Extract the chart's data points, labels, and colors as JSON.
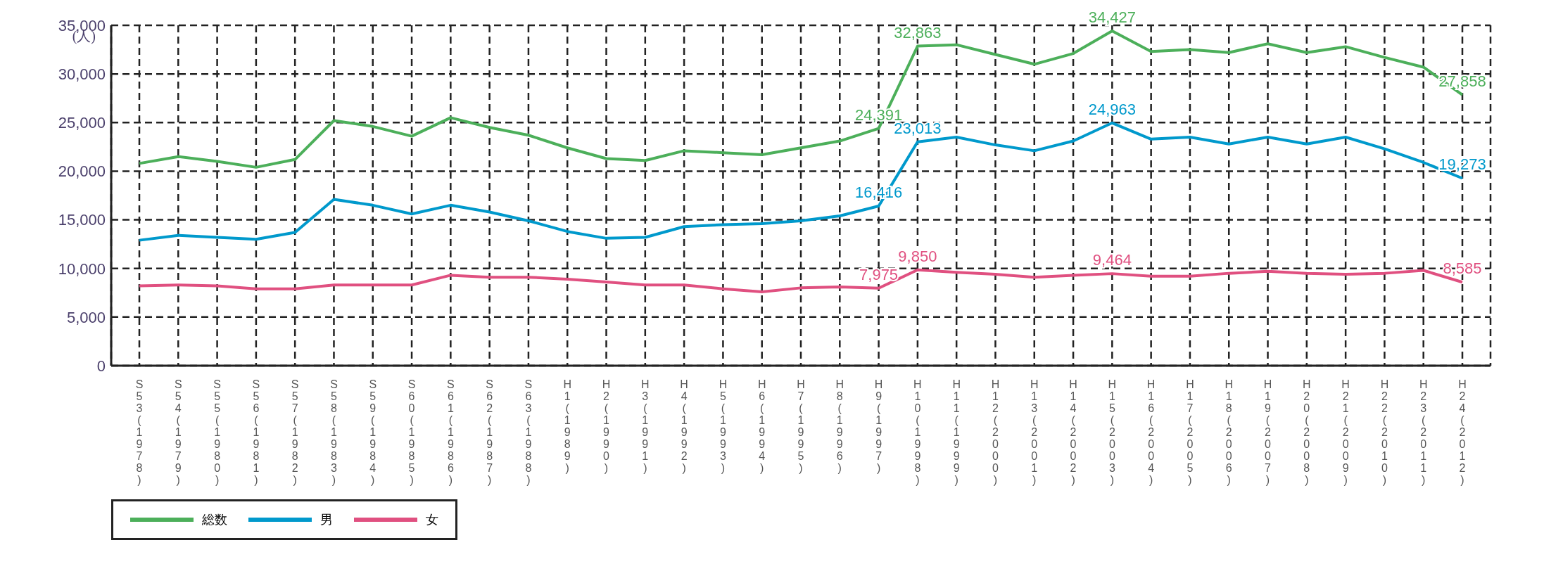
{
  "chart_data": {
    "type": "line",
    "ylabel": "(人)",
    "categories": [
      "S53(1978)",
      "S54(1979)",
      "S55(1980)",
      "S56(1981)",
      "S57(1982)",
      "S58(1983)",
      "S59(1984)",
      "S60(1985)",
      "S61(1986)",
      "S62(1987)",
      "S63(1988)",
      "H1(1989)",
      "H2(1990)",
      "H3(1991)",
      "H4(1992)",
      "H5(1993)",
      "H6(1994)",
      "H7(1995)",
      "H8(1996)",
      "H9(1997)",
      "H10(1998)",
      "H11(1999)",
      "H12(2000)",
      "H13(2001)",
      "H14(2002)",
      "H15(2003)",
      "H16(2004)",
      "H17(2005)",
      "H18(2006)",
      "H19(2007)",
      "H20(2008)",
      "H21(2009)",
      "H22(2010)",
      "H23(2011)",
      "H24(2012)"
    ],
    "series": [
      {
        "name": "総数",
        "color": "#4caf5a",
        "values": [
          20800,
          21500,
          21000,
          20400,
          21200,
          25200,
          24600,
          23600,
          25500,
          24500,
          23700,
          22400,
          21300,
          21100,
          22100,
          21900,
          21700,
          22400,
          23100,
          24391,
          32863,
          33000,
          32000,
          31000,
          32100,
          34427,
          32300,
          32500,
          32200,
          33100,
          32200,
          32800,
          31700,
          30700,
          27858
        ],
        "value_labels": [
          null,
          null,
          null,
          null,
          null,
          null,
          null,
          null,
          null,
          null,
          null,
          null,
          null,
          null,
          null,
          null,
          null,
          null,
          null,
          "24,391",
          "32,863",
          null,
          null,
          null,
          null,
          "34,427",
          null,
          null,
          null,
          null,
          null,
          null,
          null,
          null,
          "27,858"
        ]
      },
      {
        "name": "男",
        "color": "#0099cc",
        "values": [
          12900,
          13400,
          13200,
          13000,
          13700,
          17100,
          16500,
          15600,
          16500,
          15800,
          14900,
          13800,
          13100,
          13200,
          14300,
          14500,
          14600,
          14900,
          15400,
          16416,
          23013,
          23500,
          22700,
          22100,
          23100,
          24963,
          23300,
          23500,
          22800,
          23500,
          22800,
          23500,
          22300,
          20900,
          19273
        ],
        "value_labels": [
          null,
          null,
          null,
          null,
          null,
          null,
          null,
          null,
          null,
          null,
          null,
          null,
          null,
          null,
          null,
          null,
          null,
          null,
          null,
          "16,416",
          "23,013",
          null,
          null,
          null,
          null,
          "24,963",
          null,
          null,
          null,
          null,
          null,
          null,
          null,
          null,
          "19,273"
        ]
      },
      {
        "name": "女",
        "color": "#e05080",
        "values": [
          8200,
          8300,
          8200,
          7900,
          7900,
          8300,
          8300,
          8300,
          9300,
          9100,
          9100,
          8900,
          8600,
          8300,
          8300,
          7900,
          7600,
          8000,
          8100,
          7975,
          9850,
          9600,
          9400,
          9100,
          9300,
          9464,
          9200,
          9200,
          9500,
          9700,
          9500,
          9400,
          9500,
          9800,
          8585
        ],
        "value_labels": [
          null,
          null,
          null,
          null,
          null,
          null,
          null,
          null,
          null,
          null,
          null,
          null,
          null,
          null,
          null,
          null,
          null,
          null,
          null,
          "7,975",
          "9,850",
          null,
          null,
          null,
          null,
          "9,464",
          null,
          null,
          null,
          null,
          null,
          null,
          null,
          null,
          "8,585"
        ]
      }
    ],
    "ylim": [
      0,
      35000
    ],
    "yticks": [
      0,
      {
        "value": 5000,
        "label": "5,000"
      },
      {
        "value": 10000,
        "label": "10,000"
      },
      {
        "value": 15000,
        "label": "15,000"
      },
      {
        "value": 20000,
        "label": "20,000"
      },
      {
        "value": 25000,
        "label": "25,000"
      },
      {
        "value": 30000,
        "label": "30,000"
      },
      {
        "value": 35000,
        "label": "35,000"
      }
    ],
    "grid": true,
    "legend": "bottom left",
    "marker": "none",
    "line_style": "solid"
  }
}
